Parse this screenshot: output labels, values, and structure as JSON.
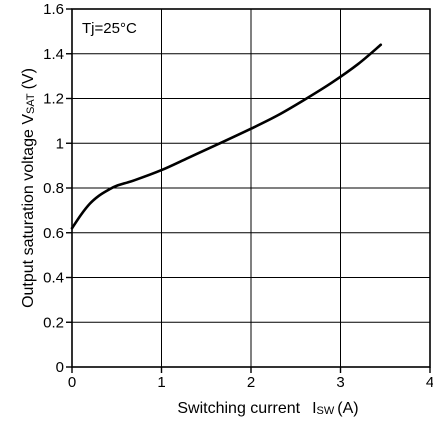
{
  "chart_data": {
    "type": "line",
    "title": "",
    "xlabel": "Switching current",
    "xlabel_symbol": "I",
    "xlabel_subscript": "SW",
    "xlabel_unit": "(A)",
    "ylabel": "Output saturation voltage V",
    "ylabel_subscript": "SAT",
    "ylabel_unit": "(V)",
    "xlim": [
      0,
      4
    ],
    "ylim": [
      0,
      1.6
    ],
    "xticks": [
      0,
      1,
      2,
      3,
      4
    ],
    "xtick_labels": [
      "0",
      "1",
      "2",
      "3",
      "4"
    ],
    "yticks": [
      0,
      0.2,
      0.4,
      0.6,
      0.8,
      1.0,
      1.2,
      1.4,
      1.6
    ],
    "ytick_labels": [
      "0",
      "0.2",
      "0.4",
      "0.6",
      "0.8",
      "1",
      "1.2",
      "1.4",
      "1.6"
    ],
    "grid": true,
    "annotation": "Tj=25°C",
    "line_color": "#000000",
    "series": [
      {
        "name": "",
        "x": [
          0,
          0.1,
          0.2,
          0.3,
          0.4,
          0.5,
          0.7,
          1.0,
          1.3,
          1.6,
          2.0,
          2.3,
          2.6,
          2.9,
          3.2,
          3.45
        ],
        "y": [
          0.62,
          0.68,
          0.73,
          0.765,
          0.79,
          0.81,
          0.835,
          0.88,
          0.935,
          0.99,
          1.065,
          1.125,
          1.195,
          1.27,
          1.355,
          1.44
        ]
      }
    ]
  }
}
